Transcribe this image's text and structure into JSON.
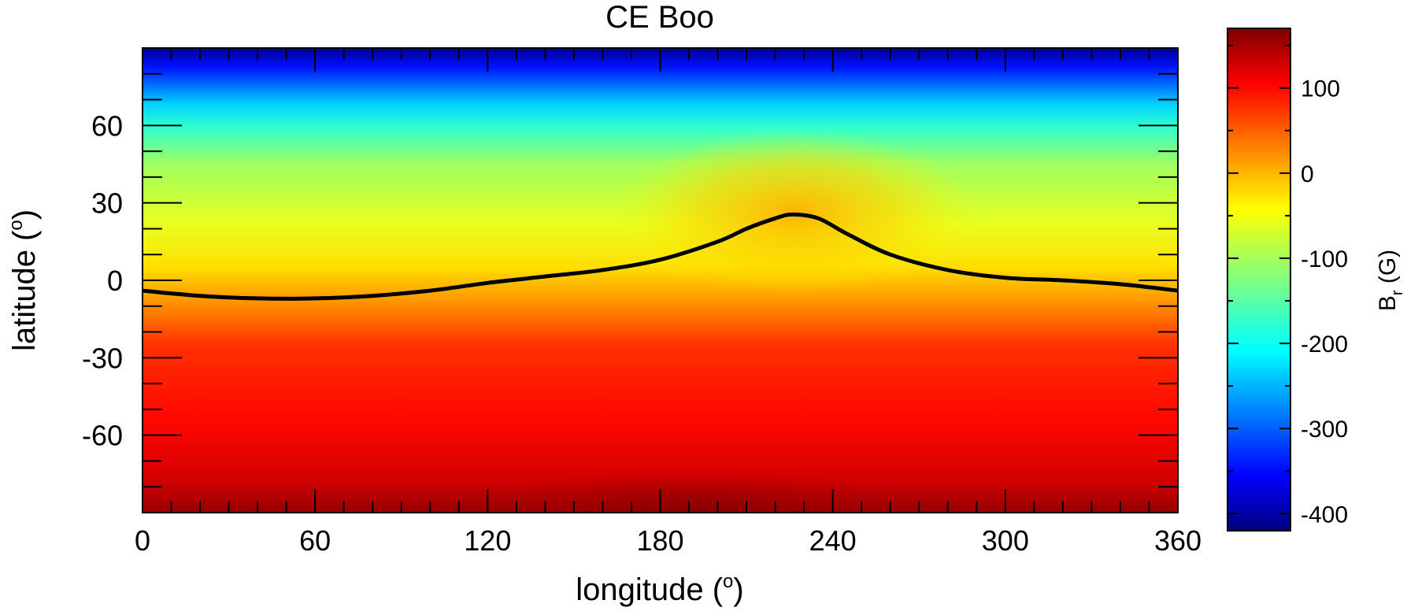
{
  "chart_data": {
    "type": "heatmap",
    "title": "CE Boo",
    "xlabel": "longitude (",
    "ylabel": "latitude (",
    "unit_superscript": "o",
    "label_close": ")",
    "xlim": [
      0,
      360
    ],
    "ylim": [
      -90,
      90
    ],
    "x_ticks": [
      0,
      60,
      120,
      180,
      240,
      300,
      360
    ],
    "x_tick_labels": [
      "0",
      "60",
      "120",
      "180",
      "240",
      "300",
      "360"
    ],
    "y_ticks": [
      60,
      30,
      0,
      -30,
      -60
    ],
    "y_tick_labels": [
      "60",
      "30",
      "0",
      "-30",
      "-60"
    ],
    "colorbar": {
      "label_main": "B",
      "label_sub": "r",
      "label_unit": " (G)",
      "range": [
        -420,
        170
      ],
      "ticks": [
        100,
        0,
        -100,
        -200,
        -300,
        -400
      ],
      "tick_labels": [
        "100",
        "0",
        "-100",
        "-200",
        "-300",
        "-400"
      ],
      "colormap": [
        [
          0.0,
          "#00007f"
        ],
        [
          0.11,
          "#0000ff"
        ],
        [
          0.36,
          "#00ffff"
        ],
        [
          0.5,
          "#80ff80"
        ],
        [
          0.64,
          "#ffff00"
        ],
        [
          0.89,
          "#ff0000"
        ],
        [
          1.0,
          "#7f0000"
        ]
      ]
    },
    "field_profile": {
      "latitude": [
        90,
        75,
        60,
        45,
        30,
        15,
        0,
        -15,
        -30,
        -45,
        -60,
        -75,
        -90
      ],
      "br_gauss": [
        -420,
        -330,
        -200,
        -120,
        -80,
        -40,
        20,
        80,
        110,
        120,
        125,
        140,
        160
      ]
    },
    "neutral_line": {
      "name": "Br = 0 contour",
      "x": [
        0,
        20,
        40,
        60,
        80,
        100,
        120,
        140,
        160,
        180,
        200,
        210,
        220,
        226,
        235,
        245,
        260,
        280,
        300,
        320,
        340,
        360
      ],
      "y": [
        -4,
        -6,
        -7,
        -7,
        -6,
        -4,
        -1,
        1.5,
        4,
        8,
        15,
        20,
        24,
        25.5,
        24,
        18,
        10,
        4,
        1,
        0,
        -1.5,
        -4
      ]
    }
  }
}
